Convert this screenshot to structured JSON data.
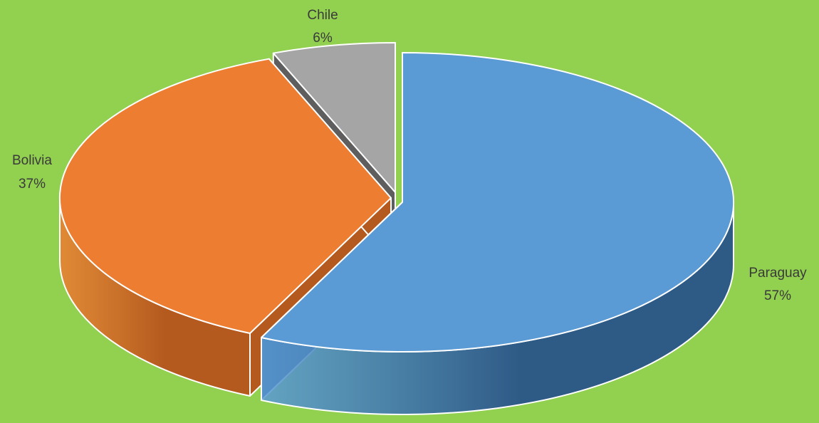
{
  "background": "#92d050",
  "chart_data": {
    "type": "pie",
    "variant": "3d-exploded",
    "categories": [
      "Paraguay",
      "Bolivia",
      "Chile"
    ],
    "values": [
      57,
      37,
      6
    ],
    "value_labels": [
      "57%",
      "37%",
      "6%"
    ],
    "colors": [
      "#5b9bd5",
      "#ed7d31",
      "#a5a5a5"
    ],
    "side_colors": [
      "#2e5a86",
      "#b45a1f",
      "#5e5e5e"
    ],
    "legend": "none"
  }
}
